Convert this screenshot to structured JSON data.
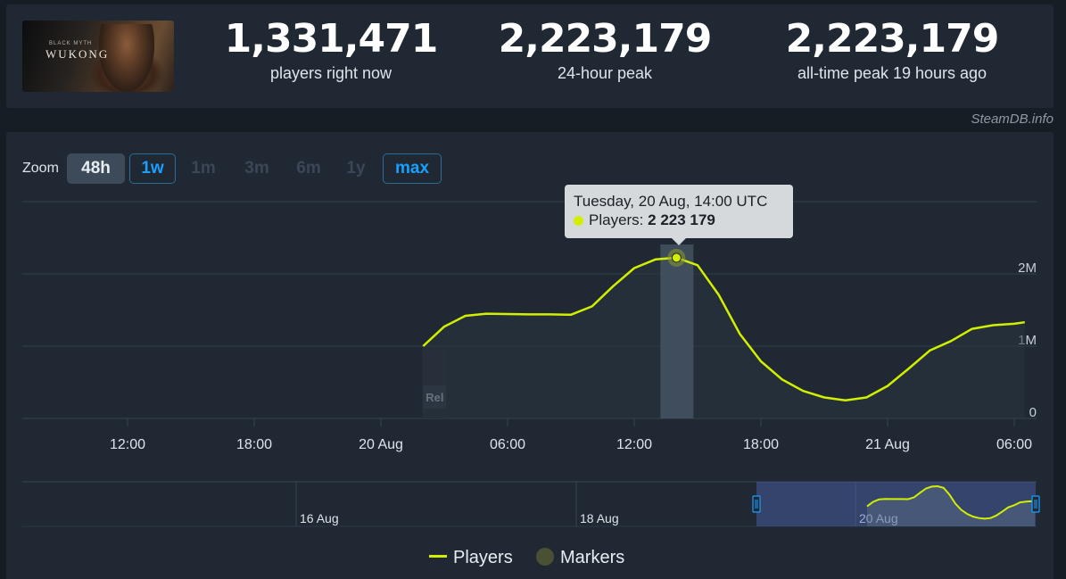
{
  "game": {
    "logo_text": "WUKONG",
    "logo_subtext": "BLACK MYTH"
  },
  "stats": [
    {
      "value": "1,331,471",
      "label": "players right now"
    },
    {
      "value": "2,223,179",
      "label": "24-hour peak"
    },
    {
      "value": "2,223,179",
      "label": "all-time peak 19 hours ago"
    }
  ],
  "attribution": "SteamDB.info",
  "zoom": {
    "label": "Zoom",
    "buttons": [
      {
        "label": "48h",
        "state": "active"
      },
      {
        "label": "1w",
        "state": "enabled"
      },
      {
        "label": "1m",
        "state": "disabled"
      },
      {
        "label": "3m",
        "state": "disabled"
      },
      {
        "label": "6m",
        "state": "disabled"
      },
      {
        "label": "1y",
        "state": "disabled"
      },
      {
        "label": "max",
        "state": "enabled"
      }
    ]
  },
  "tooltip": {
    "title": "Tuesday, 20 Aug, 14:00 UTC",
    "series_label": "Players: ",
    "value": "2 223 179"
  },
  "legend": {
    "players": "Players",
    "markers": "Markers"
  },
  "colors": {
    "line": "#d2ef00",
    "panel": "#1f2833",
    "background": "#171d25",
    "accent": "#1a9fff"
  },
  "chart_data": {
    "type": "line",
    "title": "",
    "xlabel": "",
    "ylabel": "",
    "x_tick_labels": [
      "12:00",
      "18:00",
      "20 Aug",
      "06:00",
      "12:00",
      "18:00",
      "21 Aug",
      "06:00"
    ],
    "y_tick_labels": [
      "0",
      "1M",
      "2M"
    ],
    "ylim": [
      0,
      3000000
    ],
    "grid": true,
    "legend_position": "bottom-center",
    "x_start": "2024-08-19 09:00",
    "series": [
      {
        "name": "Players",
        "x": [
          "2024-08-20 02:00",
          "2024-08-20 03:00",
          "2024-08-20 04:00",
          "2024-08-20 05:00",
          "2024-08-20 06:00",
          "2024-08-20 07:00",
          "2024-08-20 08:00",
          "2024-08-20 09:00",
          "2024-08-20 10:00",
          "2024-08-20 11:00",
          "2024-08-20 12:00",
          "2024-08-20 13:00",
          "2024-08-20 14:00",
          "2024-08-20 15:00",
          "2024-08-20 16:00",
          "2024-08-20 17:00",
          "2024-08-20 18:00",
          "2024-08-20 19:00",
          "2024-08-20 20:00",
          "2024-08-20 21:00",
          "2024-08-20 22:00",
          "2024-08-20 23:00",
          "2024-08-21 00:00",
          "2024-08-21 01:00",
          "2024-08-21 02:00",
          "2024-08-21 03:00",
          "2024-08-21 04:00",
          "2024-08-21 05:00",
          "2024-08-21 06:00",
          "2024-08-21 06:30"
        ],
        "values": [
          1000000,
          1270000,
          1420000,
          1450000,
          1445000,
          1440000,
          1440000,
          1435000,
          1550000,
          1830000,
          2080000,
          2200000,
          2223179,
          2120000,
          1710000,
          1170000,
          790000,
          540000,
          380000,
          290000,
          250000,
          290000,
          450000,
          690000,
          940000,
          1070000,
          1240000,
          1290000,
          1310000,
          1331471
        ]
      }
    ],
    "markers": [
      {
        "x": "2024-08-20 02:00",
        "label": "Rel"
      }
    ],
    "navigator": {
      "tick_labels": [
        "16 Aug",
        "18 Aug",
        "20 Aug"
      ]
    }
  }
}
